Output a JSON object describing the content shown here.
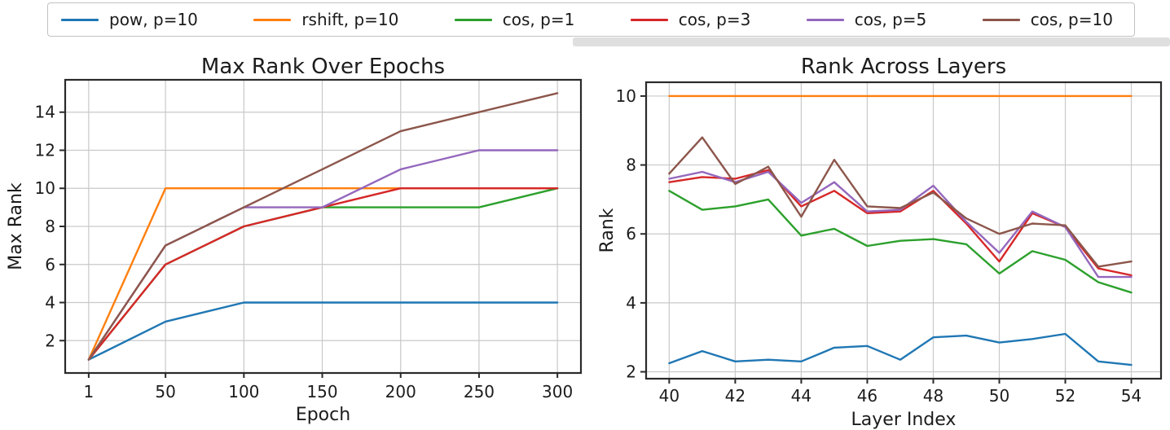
{
  "legend": {
    "position": "top",
    "items": [
      {
        "label": "pow, p=10",
        "color": "#1f77b4"
      },
      {
        "label": "rshift, p=10",
        "color": "#ff7f0e"
      },
      {
        "label": "cos, p=1",
        "color": "#2ca02c"
      },
      {
        "label": "cos, p=3",
        "color": "#d62728"
      },
      {
        "label": "cos, p=5",
        "color": "#9467bd"
      },
      {
        "label": "cos, p=10",
        "color": "#8c564b"
      }
    ]
  },
  "chart_data": [
    {
      "type": "line",
      "title": "Max Rank Over Epochs",
      "xlabel": "Epoch",
      "ylabel": "Max Rank",
      "x": [
        1,
        50,
        100,
        150,
        200,
        250,
        300
      ],
      "xticks": [
        1,
        50,
        100,
        150,
        200,
        250,
        300
      ],
      "yticks": [
        2,
        4,
        6,
        8,
        10,
        12,
        14
      ],
      "xlim": [
        -14,
        315
      ],
      "ylim": [
        0.3,
        15.7
      ],
      "grid": true,
      "legend_position": "top-figure",
      "series": [
        {
          "name": "pow, p=10",
          "color": "#1f77b4",
          "values": [
            1,
            3,
            4,
            4,
            4,
            4,
            4
          ]
        },
        {
          "name": "rshift, p=10",
          "color": "#ff7f0e",
          "values": [
            1,
            10,
            10,
            10,
            10,
            10,
            10
          ]
        },
        {
          "name": "cos, p=1",
          "color": "#2ca02c",
          "values": [
            1,
            6,
            8,
            9,
            9,
            9,
            10
          ]
        },
        {
          "name": "cos, p=3",
          "color": "#d62728",
          "values": [
            1,
            6,
            8,
            9,
            10,
            10,
            10
          ]
        },
        {
          "name": "cos, p=5",
          "color": "#9467bd",
          "values": [
            1,
            7,
            9,
            9,
            11,
            12,
            12
          ]
        },
        {
          "name": "cos, p=10",
          "color": "#8c564b",
          "values": [
            1,
            7,
            9,
            11,
            13,
            14,
            15
          ]
        }
      ]
    },
    {
      "type": "line",
      "title": "Rank Across Layers",
      "xlabel": "Layer Index",
      "ylabel": "Rank",
      "x": [
        40,
        41,
        42,
        43,
        44,
        45,
        46,
        47,
        48,
        49,
        50,
        51,
        52,
        53,
        54
      ],
      "xticks": [
        40,
        42,
        44,
        46,
        48,
        50,
        52,
        54
      ],
      "yticks": [
        2,
        4,
        6,
        8,
        10
      ],
      "xlim": [
        39.3,
        54.9
      ],
      "ylim": [
        1.8,
        10.4
      ],
      "grid": true,
      "legend_position": "top-figure",
      "series": [
        {
          "name": "pow, p=10",
          "color": "#1f77b4",
          "values": [
            2.25,
            2.6,
            2.3,
            2.35,
            2.3,
            2.7,
            2.75,
            2.35,
            3.0,
            3.05,
            2.85,
            2.95,
            3.1,
            2.3,
            2.2
          ]
        },
        {
          "name": "rshift, p=10",
          "color": "#ff7f0e",
          "values": [
            10,
            10,
            10,
            10,
            10,
            10,
            10,
            10,
            10,
            10,
            10,
            10,
            10,
            10,
            10
          ]
        },
        {
          "name": "cos, p=1",
          "color": "#2ca02c",
          "values": [
            7.25,
            6.7,
            6.8,
            7.0,
            5.95,
            6.15,
            5.65,
            5.8,
            5.85,
            5.7,
            4.85,
            5.5,
            5.25,
            4.6,
            4.3
          ]
        },
        {
          "name": "cos, p=3",
          "color": "#d62728",
          "values": [
            7.5,
            7.65,
            7.6,
            7.85,
            6.8,
            7.25,
            6.6,
            6.65,
            7.25,
            6.3,
            5.2,
            6.6,
            6.2,
            5.0,
            4.8
          ]
        },
        {
          "name": "cos, p=5",
          "color": "#9467bd",
          "values": [
            7.6,
            7.8,
            7.5,
            7.8,
            6.9,
            7.5,
            6.65,
            6.7,
            7.4,
            6.35,
            5.45,
            6.65,
            6.2,
            4.75,
            4.75
          ]
        },
        {
          "name": "cos, p=10",
          "color": "#8c564b",
          "values": [
            7.75,
            8.8,
            7.45,
            7.95,
            6.5,
            8.15,
            6.8,
            6.75,
            7.2,
            6.45,
            6.0,
            6.3,
            6.25,
            5.05,
            5.2
          ]
        }
      ]
    }
  ]
}
